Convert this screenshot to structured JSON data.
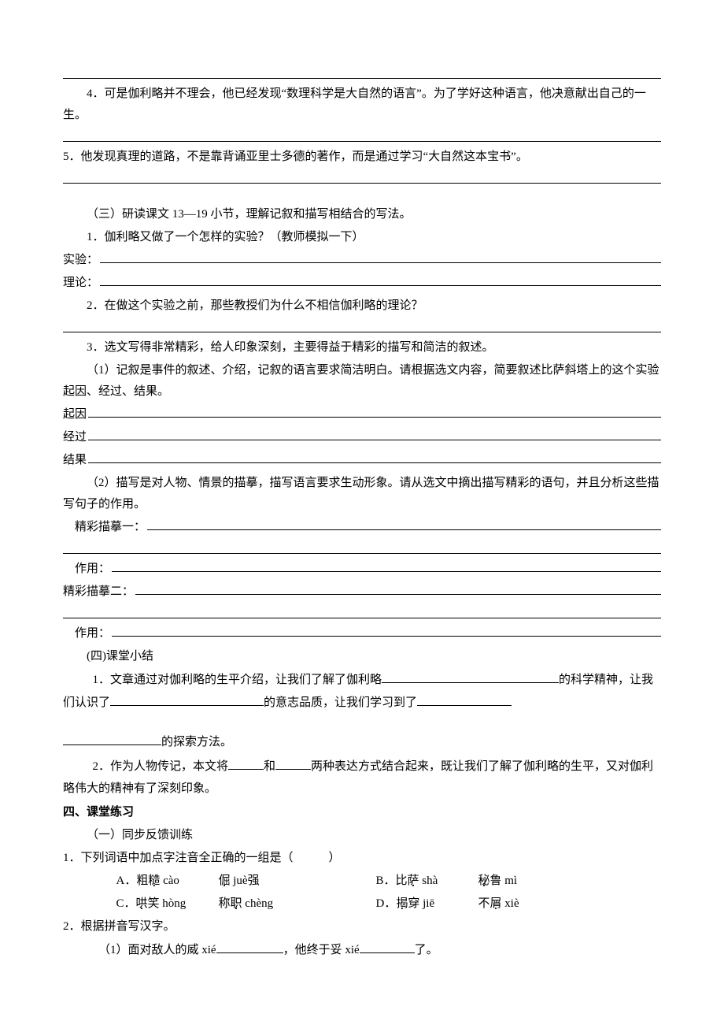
{
  "top_blank": "",
  "q4": "4．可是伽利略并不理会，他已经发现“数理科学是大自然的语言”。为了学好这种语言，他决意献出自己的一生。",
  "q5": "5．他发现真理的道路，不是靠背诵亚里士多德的著作，而是通过学习“大自然这本宝书”。",
  "s3_title": "（三）研读课文 13—19 小节，理解记叙和描写相结合的写法。",
  "s3_q1": "1．伽利略又做了一个怎样的实验？（教师模拟一下）",
  "labels": {
    "experiment": "实验：",
    "theory": "理论：",
    "cause": "起因",
    "process": "经过",
    "result": "结果",
    "desc1": "精彩描摹一：",
    "desc2": "精彩描摹二：",
    "effect": "作用："
  },
  "s3_q2": "2．在做这个实验之前，那些教授们为什么不相信伽利略的理论？",
  "s3_q3": "3．选文写得非常精彩，给人印象深刻，主要得益于精彩的描写和简洁的叙述。",
  "s3_q3_1": "（1）记叙是事件的叙述、介绍，记叙的语言要求简洁明白。请根据选文内容，简要叙述比萨斜塔上的这个实验起因、经过、结果。",
  "s3_q3_2": "（2）描写是对人物、情景的描摹，描写语言要求生动形象。请从选文中摘出描写精彩的语句，并且分析这些描写句子的作用。",
  "s4_title": "(四)课堂小结",
  "s4_q1_a": "1．文章通过对伽利略的生平介绍，让我们了解了伽利略",
  "s4_q1_b": "的科学精神，让我们认识了",
  "s4_q1_c": "的意志品质，让我们学习到了",
  "s4_q1_d": "的探索方法。",
  "s4_q2_a": "2．作为人物传记，本文将",
  "s4_q2_b": "和",
  "s4_q2_c": "两种表达方式结合起来，既让我们了解了伽利略的生平，又对伽利略伟大的精神有了深刻印象。",
  "sec4_title": "四、课堂练习",
  "sec4_sub": "（一）同步反馈训练",
  "p1": "1．下列词语中加点字注音全正确的一组是（　　　）",
  "opts": {
    "a1": "A．粗",
    "a1w": "糙",
    "a1p": " cào",
    "a2w": "倔",
    "a2p": " juè强",
    "b1": "B．比",
    "b1w": "萨",
    "b1p": " shà",
    "b2w": "秘",
    "b2p": "鲁 mì",
    "c1": "C．",
    "c1w": "哄",
    "c1p": "笑 hòng",
    "c2": "称",
    "c2w": "职",
    "c2p": " chèng",
    "d1": "D．",
    "d1w": "揭",
    "d1p": "穿 jiē",
    "d2": "不",
    "d2w": "屑",
    "d2p": " xiè"
  },
  "p2": "2．根据拼音写汉字。",
  "p2_1_a": "（1）面对敌人的威 xié",
  "p2_1_b": "，他终于妥 xié",
  "p2_1_c": "了。",
  "widths": {
    "w1": 225,
    "w2": 195,
    "w3": 120,
    "w4": 125,
    "w5": 45,
    "w6": 45,
    "w7": 85,
    "w8": 70
  }
}
